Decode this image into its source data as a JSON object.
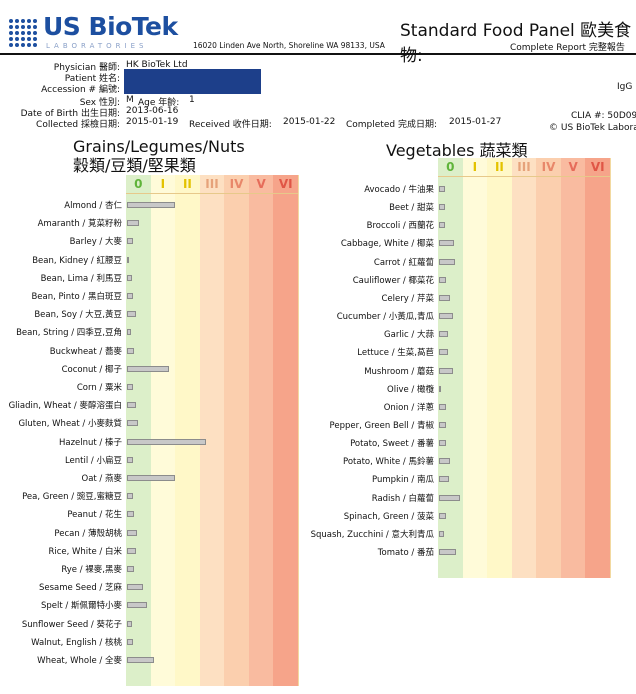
{
  "header": {
    "logo_main": "US BioTek",
    "logo_sub": "LABORATORIES",
    "address": "16020 Linden Ave North, Shoreline WA 98133, USA",
    "title": "Standard Food Panel 歐美食物:",
    "subtitle": "Complete Report 完整報告"
  },
  "patient": {
    "physician_label": "Physician 醫師:",
    "physician": "HK BioTek Ltd",
    "patient_label": "Patient 姓名:",
    "accession_label": "Accession # 編號:",
    "sex_label": "Sex 性別:",
    "sex": "M",
    "age_label": "Age 年齡:",
    "age": "1",
    "dob_label": "Date of Birth 出生日期:",
    "dob": "2013-06-16",
    "collected_label": "Collected 採檢日期:",
    "collected": "2015-01-19",
    "received_label": "Received 收件日期:",
    "received": "2015-01-22",
    "completed_label": "Completed 完成日期:",
    "completed": "2015-01-27",
    "ig_label": "IgG [",
    "clia": "CLIA #: 50D09",
    "copyright": "© US BioTek Labora"
  },
  "class_labels": [
    "0",
    "I",
    "II",
    "III",
    "IV",
    "V",
    "VI"
  ],
  "class_colors": [
    "#5fb43a",
    "#e3c200",
    "#e3c200",
    "#e6a27a",
    "#e8876a",
    "#e66c5a",
    "#e05646"
  ],
  "grains": {
    "title": "Grains/Legumes/Nuts",
    "title_cn": "穀類/豆類/堅果類",
    "items": [
      {
        "label": "Almond / 杏仁",
        "level": 1.95
      },
      {
        "label": "Amaranth / 莧菜籽粉",
        "level": 0.5
      },
      {
        "label": "Barley / 大麥",
        "level": 0.25
      },
      {
        "label": "Bean, Kidney / 紅腰豆",
        "level": 0.1
      },
      {
        "label": "Bean, Lima / 利馬豆",
        "level": 0.2
      },
      {
        "label": "Bean, Pinto / 黑白斑豆",
        "level": 0.25
      },
      {
        "label": "Bean, Soy / 大豆,黃豆",
        "level": 0.35
      },
      {
        "label": "Bean, String / 四季豆,豆角",
        "level": 0.15
      },
      {
        "label": "Buckwheat / 蕎麥",
        "level": 0.3
      },
      {
        "label": "Coconut / 椰子",
        "level": 1.7
      },
      {
        "label": "Corn / 粟米",
        "level": 0.25
      },
      {
        "label": "Gliadin, Wheat / 麥醇溶蛋白",
        "level": 0.35
      },
      {
        "label": "Gluten, Wheat / 小麥麩質",
        "level": 0.45
      },
      {
        "label": "Hazelnut / 榛子",
        "level": 3.2
      },
      {
        "label": "Lentil / 小扁豆",
        "level": 0.25
      },
      {
        "label": "Oat / 燕麥",
        "level": 1.95
      },
      {
        "label": "Pea, Green / 豌豆,蜜糖豆",
        "level": 0.25
      },
      {
        "label": "Peanut / 花生",
        "level": 0.3
      },
      {
        "label": "Pecan / 薄殼胡桃",
        "level": 0.4
      },
      {
        "label": "Rice, White / 白米",
        "level": 0.35
      },
      {
        "label": "Rye / 裸麥,黑麥",
        "level": 0.3
      },
      {
        "label": "Sesame Seed / 芝麻",
        "level": 0.65
      },
      {
        "label": "Spelt / 斯佩爾特小麥",
        "level": 0.8
      },
      {
        "label": "Sunflower Seed / 葵花子",
        "level": 0.2
      },
      {
        "label": "Walnut, English / 核桃",
        "level": 0.25
      },
      {
        "label": "Wheat, Whole / 全麥",
        "level": 1.1
      }
    ]
  },
  "vegetables": {
    "title": "Vegetables 蔬菜類",
    "items": [
      {
        "label": "Avocado / 牛油果",
        "level": 0.25
      },
      {
        "label": "Beet / 甜菜",
        "level": 0.25
      },
      {
        "label": "Broccoli / 西蘭花",
        "level": 0.25
      },
      {
        "label": "Cabbage, White / 椰菜",
        "level": 0.6
      },
      {
        "label": "Carrot / 紅蘿蔔",
        "level": 0.65
      },
      {
        "label": "Cauliflower / 椰菜花",
        "level": 0.3
      },
      {
        "label": "Celery / 芹菜",
        "level": 0.45
      },
      {
        "label": "Cucumber / 小黃瓜,青瓜",
        "level": 0.55
      },
      {
        "label": "Garlic / 大蒜",
        "level": 0.35
      },
      {
        "label": "Lettuce / 生菜,萵苣",
        "level": 0.35
      },
      {
        "label": "Mushroom / 蘑菇",
        "level": 0.55
      },
      {
        "label": "Olive / 橄欖",
        "level": 0.08
      },
      {
        "label": "Onion / 洋蔥",
        "level": 0.3
      },
      {
        "label": "Pepper, Green Bell / 青椒",
        "level": 0.3
      },
      {
        "label": "Potato, Sweet / 番薯",
        "level": 0.3
      },
      {
        "label": "Potato, White / 馬鈴薯",
        "level": 0.45
      },
      {
        "label": "Pumpkin / 南瓜",
        "level": 0.4
      },
      {
        "label": "Radish / 白蘿蔔",
        "level": 0.85
      },
      {
        "label": "Spinach, Green / 菠菜",
        "level": 0.3
      },
      {
        "label": "Squash, Zucchini / 意大利青瓜",
        "level": 0.2
      },
      {
        "label": "Tomato / 番茄",
        "level": 0.7
      }
    ]
  }
}
